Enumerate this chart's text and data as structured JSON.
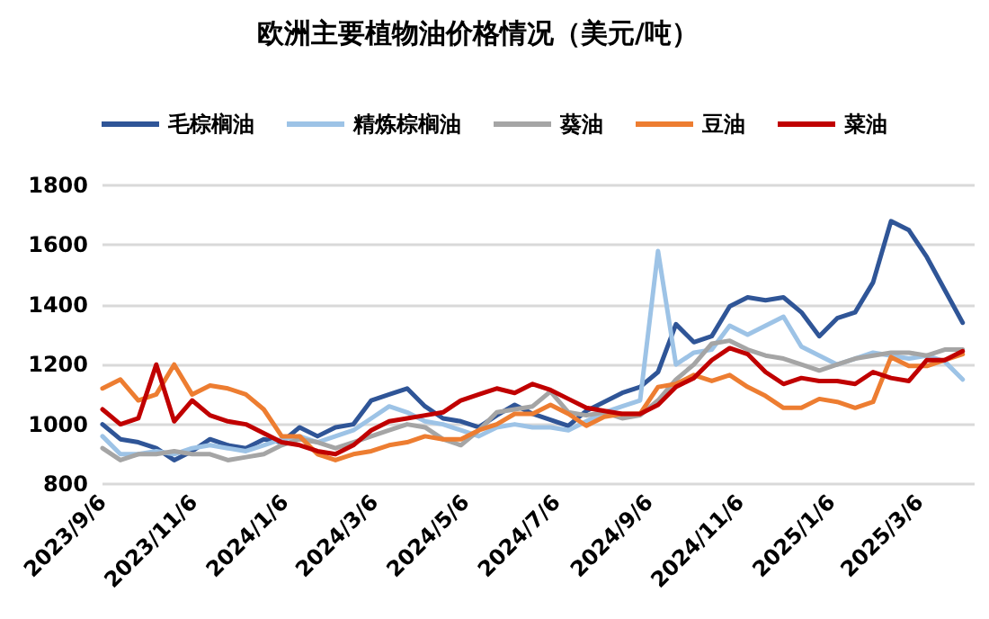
{
  "chart_data": {
    "type": "line",
    "title": "欧洲主要植物油价格情况（美元/吨）",
    "x": [
      "2023-09-06",
      "2023-09-18",
      "2023-09-30",
      "2023-10-12",
      "2023-10-24",
      "2023-11-05",
      "2023-11-17",
      "2023-11-29",
      "2023-12-11",
      "2023-12-23",
      "2024-01-04",
      "2024-01-16",
      "2024-01-28",
      "2024-02-09",
      "2024-02-21",
      "2024-03-04",
      "2024-03-16",
      "2024-03-28",
      "2024-04-09",
      "2024-04-21",
      "2024-05-03",
      "2024-05-15",
      "2024-05-27",
      "2024-06-08",
      "2024-06-20",
      "2024-07-02",
      "2024-07-14",
      "2024-07-26",
      "2024-08-07",
      "2024-08-19",
      "2024-08-31",
      "2024-09-12",
      "2024-09-24",
      "2024-10-06",
      "2024-10-18",
      "2024-10-30",
      "2024-11-11",
      "2024-11-23",
      "2024-12-05",
      "2024-12-17",
      "2024-12-29",
      "2025-01-10",
      "2025-01-22",
      "2025-02-03",
      "2025-02-15",
      "2025-02-27",
      "2025-03-11",
      "2025-03-23",
      "2025-04-04"
    ],
    "series": [
      {
        "name": "毛棕榈油",
        "color": "#2f5597",
        "values": [
          1000,
          950,
          940,
          920,
          880,
          910,
          950,
          930,
          920,
          950,
          940,
          990,
          960,
          990,
          1000,
          1080,
          1100,
          1120,
          1060,
          1020,
          1010,
          990,
          1030,
          1065,
          1035,
          1015,
          995,
          1045,
          1075,
          1105,
          1125,
          1175,
          1335,
          1275,
          1295,
          1395,
          1425,
          1415,
          1425,
          1375,
          1295,
          1355,
          1375,
          1475,
          1680,
          1650,
          1560,
          1450,
          1340
        ]
      },
      {
        "name": "精炼棕榈油",
        "color": "#9dc3e6",
        "values": [
          960,
          900,
          900,
          910,
          900,
          920,
          930,
          920,
          910,
          930,
          950,
          960,
          940,
          960,
          980,
          1020,
          1060,
          1040,
          1010,
          1000,
          980,
          960,
          990,
          1000,
          990,
          990,
          980,
          1010,
          1040,
          1060,
          1080,
          1580,
          1200,
          1240,
          1250,
          1330,
          1300,
          1330,
          1360,
          1260,
          1230,
          1200,
          1220,
          1240,
          1230,
          1220,
          1230,
          1210,
          1150
        ]
      },
      {
        "name": "葵油",
        "color": "#a5a5a5",
        "values": [
          920,
          880,
          900,
          900,
          910,
          900,
          900,
          880,
          890,
          900,
          930,
          950,
          940,
          920,
          940,
          960,
          980,
          1000,
          990,
          950,
          930,
          980,
          1040,
          1050,
          1060,
          1110,
          1040,
          1030,
          1040,
          1020,
          1030,
          1080,
          1150,
          1200,
          1270,
          1280,
          1250,
          1230,
          1220,
          1200,
          1180,
          1200,
          1220,
          1230,
          1240,
          1240,
          1230,
          1250,
          1250
        ]
      },
      {
        "name": "豆油",
        "color": "#ed7d31",
        "values": [
          1120,
          1150,
          1080,
          1100,
          1200,
          1100,
          1130,
          1120,
          1100,
          1050,
          960,
          960,
          900,
          880,
          900,
          910,
          930,
          940,
          960,
          950,
          950,
          980,
          1000,
          1035,
          1035,
          1065,
          1035,
          995,
          1025,
          1035,
          1035,
          1125,
          1135,
          1165,
          1145,
          1165,
          1125,
          1095,
          1055,
          1055,
          1085,
          1075,
          1055,
          1075,
          1225,
          1195,
          1195,
          1215,
          1235
        ]
      },
      {
        "name": "菜油",
        "color": "#c00000",
        "values": [
          1050,
          1000,
          1020,
          1200,
          1010,
          1080,
          1030,
          1010,
          1000,
          970,
          940,
          930,
          910,
          900,
          930,
          980,
          1010,
          1020,
          1030,
          1040,
          1080,
          1100,
          1120,
          1105,
          1135,
          1115,
          1085,
          1055,
          1045,
          1035,
          1035,
          1065,
          1125,
          1155,
          1215,
          1255,
          1235,
          1175,
          1135,
          1155,
          1145,
          1145,
          1135,
          1175,
          1155,
          1145,
          1215,
          1215,
          1245
        ]
      }
    ],
    "xlim": [
      "2023-09-06",
      "2025-04-12"
    ],
    "xticks": [
      {
        "value": "2023-09-06",
        "label": "2023/9/6"
      },
      {
        "value": "2023-11-06",
        "label": "2023/11/6"
      },
      {
        "value": "2024-01-06",
        "label": "2024/1/6"
      },
      {
        "value": "2024-03-06",
        "label": "2024/3/6"
      },
      {
        "value": "2024-05-06",
        "label": "2024/5/6"
      },
      {
        "value": "2024-07-06",
        "label": "2024/7/6"
      },
      {
        "value": "2024-09-06",
        "label": "2024/9/6"
      },
      {
        "value": "2024-11-06",
        "label": "2024/11/6"
      },
      {
        "value": "2025-01-06",
        "label": "2025/1/6"
      },
      {
        "value": "2025-03-06",
        "label": "2025/3/6"
      }
    ],
    "ylim": [
      800,
      1800
    ],
    "yticks": [
      800,
      1000,
      1200,
      1400,
      1600,
      1800
    ],
    "grid": "y",
    "legend": "top",
    "marker": "none",
    "line_style": "solid"
  }
}
